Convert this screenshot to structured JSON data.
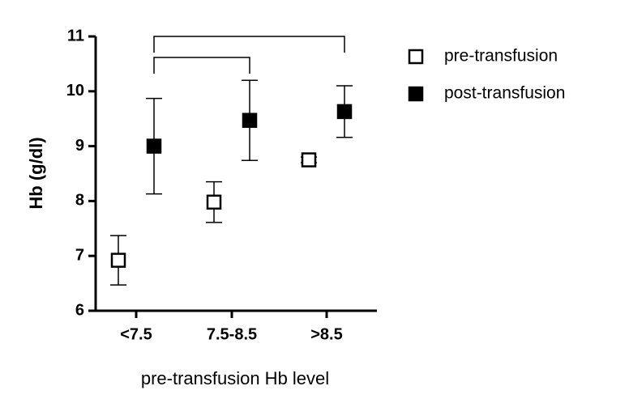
{
  "chart_data": {
    "type": "errorbar",
    "x_label": "pre-transfusion Hb level",
    "y_label": "Hb (g/dl)",
    "categories": [
      "<7.5",
      "7.5-8.5",
      ">8.5"
    ],
    "ylim": [
      6,
      11
    ],
    "yticks": [
      6,
      7,
      8,
      9,
      10,
      11
    ],
    "series": [
      {
        "name": "pre-transfusion",
        "color": "#000000",
        "filled": false,
        "values": [
          6.92,
          7.98,
          8.75
        ],
        "errors": [
          0.45,
          0.37,
          0.05
        ]
      },
      {
        "name": "post-transfusion",
        "color": "#000000",
        "filled": true,
        "values": [
          9.0,
          9.47,
          9.63
        ],
        "errors": [
          0.87,
          0.73,
          0.47
        ]
      }
    ]
  }
}
